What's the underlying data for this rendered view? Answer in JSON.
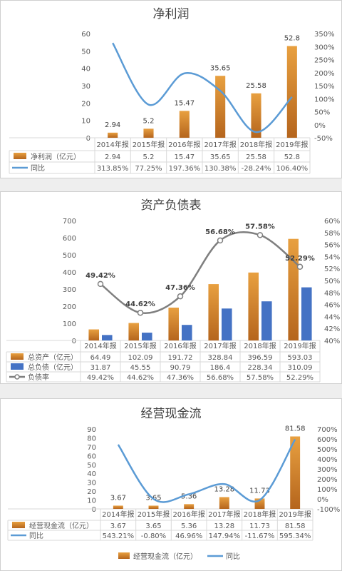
{
  "colors": {
    "bar_top": "#e8a040",
    "bar_bottom": "#b5651d",
    "line": "#5b9bd5",
    "blue_bar": "#4472c4",
    "debt_line": "#7f7f7f",
    "text": "#595959",
    "grid": "#d9d9d9"
  },
  "chart_data": [
    {
      "type": "bar",
      "title": "净利润",
      "categories": [
        "2014年报",
        "2015年报",
        "2016年报",
        "2017年报",
        "2018年报",
        "2019年报"
      ],
      "ylim": [
        0,
        60
      ],
      "yticks": [
        "0",
        "10",
        "20",
        "30",
        "40",
        "50",
        "60"
      ],
      "y2lim": [
        -50,
        350
      ],
      "y2ticks": [
        "-50%",
        "0%",
        "50%",
        "100%",
        "150%",
        "200%",
        "250%",
        "300%",
        "350%"
      ],
      "series": [
        {
          "name": "净利润（亿元）",
          "kind": "bar",
          "values": [
            2.94,
            5.2,
            15.47,
            35.65,
            25.58,
            52.8
          ],
          "labels": [
            "2.94",
            "5.2",
            "15.47",
            "35.65",
            "25.58",
            "52.8"
          ]
        },
        {
          "name": "同比",
          "kind": "line",
          "values": [
            313.85,
            77.25,
            197.36,
            130.38,
            -28.24,
            106.4
          ],
          "labels": [
            "313.85%",
            "77.25%",
            "197.36%",
            "130.38%",
            "-28.24%",
            "106.40%"
          ]
        }
      ]
    },
    {
      "type": "bar",
      "title": "资产负债表",
      "categories": [
        "2014年报",
        "2015年报",
        "2016年报",
        "2017年报",
        "2018年报",
        "2019年报"
      ],
      "ylim": [
        0,
        700
      ],
      "yticks": [
        "0",
        "100",
        "200",
        "300",
        "400",
        "500",
        "600",
        "700"
      ],
      "y2lim": [
        40,
        60
      ],
      "y2ticks": [
        "40%",
        "42%",
        "44%",
        "46%",
        "48%",
        "50%",
        "52%",
        "54%",
        "56%",
        "58%",
        "60%"
      ],
      "series": [
        {
          "name": "总资产（亿元）",
          "kind": "bar",
          "values": [
            64.49,
            102.09,
            191.72,
            328.84,
            396.59,
            593.03
          ],
          "labels": [
            "64.49",
            "102.09",
            "191.72",
            "328.84",
            "396.59",
            "593.03"
          ]
        },
        {
          "name": "总负债（亿元）",
          "kind": "bar2",
          "values": [
            31.87,
            45.55,
            90.79,
            186.4,
            228.34,
            310.09
          ],
          "labels": [
            "31.87",
            "45.55",
            "90.79",
            "186.4",
            "228.34",
            "310.09"
          ]
        },
        {
          "name": "负债率",
          "kind": "line",
          "values": [
            49.42,
            44.62,
            47.36,
            56.68,
            57.58,
            52.29
          ],
          "labels": [
            "49.42%",
            "44.62%",
            "47.36%",
            "56.68%",
            "57.58%",
            "52.29%"
          ]
        }
      ]
    },
    {
      "type": "bar",
      "title": "经营现金流",
      "categories": [
        "2014年报",
        "2015年报",
        "2016年报",
        "2017年报",
        "2018年报",
        "2019年报"
      ],
      "ylim": [
        0,
        90
      ],
      "yticks": [
        "0",
        "10",
        "20",
        "30",
        "40",
        "50",
        "60",
        "70",
        "80",
        "90"
      ],
      "y2lim": [
        -100,
        700
      ],
      "y2ticks": [
        "-100%",
        "0%",
        "100%",
        "200%",
        "300%",
        "400%",
        "500%",
        "600%",
        "700%"
      ],
      "series": [
        {
          "name": "经营现金流（亿元）",
          "kind": "bar",
          "values": [
            3.67,
            3.65,
            5.36,
            13.28,
            11.73,
            81.58
          ],
          "labels": [
            "3.67",
            "3.65",
            "5.36",
            "13.28",
            "11.73",
            "81.58"
          ]
        },
        {
          "name": "同比",
          "kind": "line",
          "values": [
            543.21,
            -0.8,
            46.96,
            147.94,
            -11.67,
            595.34
          ],
          "labels": [
            "543.21%",
            "-0.80%",
            "46.96%",
            "147.94%",
            "-11.67%",
            "595.34%"
          ]
        }
      ],
      "legend": [
        "经营现金流（亿元）",
        "同比"
      ]
    }
  ]
}
